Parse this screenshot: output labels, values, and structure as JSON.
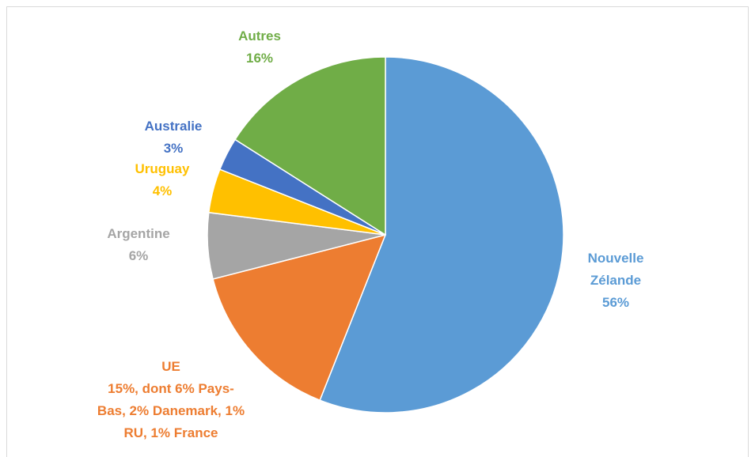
{
  "chart_data": {
    "type": "pie",
    "categories": [
      "Nouvelle Zélande",
      "UE",
      "Argentine",
      "Uruguay",
      "Australie",
      "Autres"
    ],
    "values": [
      56,
      15,
      6,
      4,
      3,
      16
    ],
    "value_labels": [
      "56%",
      "15%, dont 6% Pays-Bas, 2% Danemark, 1% RU, 1% France",
      "6%",
      "4%",
      "3%",
      "16%"
    ],
    "colors": [
      "#5b9bd5",
      "#ed7d31",
      "#a5a5a5",
      "#ffc000",
      "#4472c4",
      "#70ad47"
    ]
  }
}
